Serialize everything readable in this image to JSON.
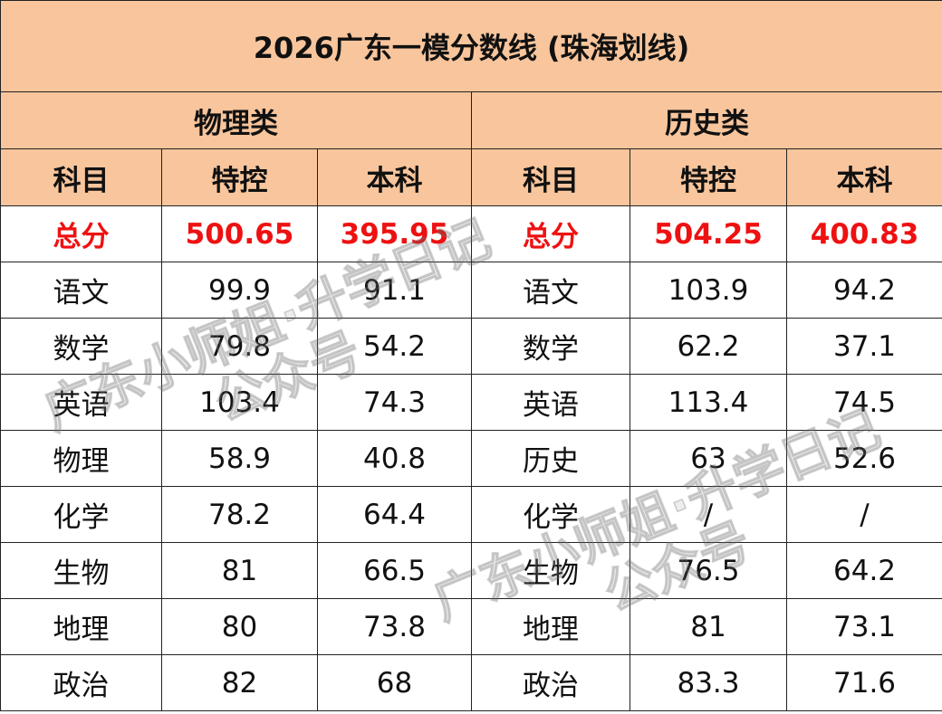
{
  "title": "2026广东一模分数线 (珠海划线)",
  "groups": [
    "物理类",
    "历史类"
  ],
  "header": [
    "科目",
    "特控",
    "本科",
    "科目",
    "特控",
    "本科"
  ],
  "rows": [
    [
      "总分",
      "500.65",
      "395.95",
      "总分",
      "504.25",
      "400.83"
    ],
    [
      "语文",
      "99.9",
      "91.1",
      "语文",
      "103.9",
      "94.2"
    ],
    [
      "数学",
      "79.8",
      "54.2",
      "数学",
      "62.2",
      "37.1"
    ],
    [
      "英语",
      "103.4",
      "74.3",
      "英语",
      "113.4",
      "74.5"
    ],
    [
      "物理",
      "58.9",
      "40.8",
      "历史",
      "63",
      "52.6"
    ],
    [
      "化学",
      "78.2",
      "64.4",
      "化学",
      "/",
      "/"
    ],
    [
      "生物",
      "81",
      "66.5",
      "生物",
      "76.5",
      "64.2"
    ],
    [
      "地理",
      "80",
      "73.8",
      "地理",
      "81",
      "73.1"
    ],
    [
      "政治",
      "82",
      "68",
      "政治",
      "83.3",
      "71.6"
    ]
  ],
  "watermark": {
    "line1": "广东小师姐·升学日记",
    "line2": "公众号"
  }
}
